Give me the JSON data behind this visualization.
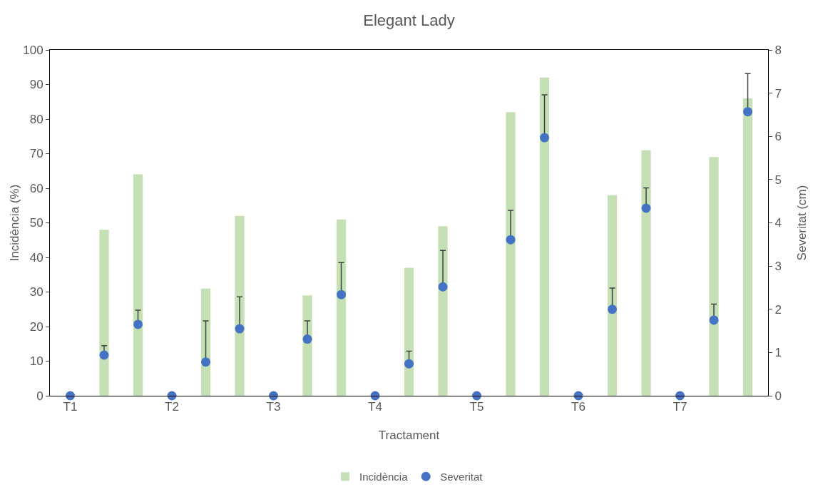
{
  "chart_data": {
    "type": "bar",
    "title": "Elegant Lady",
    "xlabel": "Tractament",
    "ylabel": "Incidència (%)",
    "y2label": "Severitat (cm)",
    "categories": [
      "T1",
      null,
      null,
      "T2",
      null,
      null,
      "T3",
      null,
      null,
      "T4",
      null,
      null,
      "T5",
      null,
      null,
      "T6",
      null,
      null,
      "T7",
      null,
      null
    ],
    "series": [
      {
        "name": "Incidència",
        "color": "#c5e0b4",
        "values": [
          0,
          48,
          64,
          0,
          31,
          52,
          0,
          29,
          51,
          0,
          37,
          49,
          0,
          82,
          92,
          0,
          58,
          71,
          0,
          69,
          86
        ]
      },
      {
        "name": "Severitat",
        "type": "scatter",
        "axis": "y2",
        "color": "#4472c4",
        "marker": "circle",
        "values": [
          0,
          0.94,
          1.65,
          0,
          0.78,
          1.55,
          0,
          1.31,
          2.34,
          0,
          0.74,
          2.52,
          0,
          3.61,
          5.97,
          0,
          2.0,
          4.34,
          0,
          1.75,
          6.57
        ],
        "errors": [
          null,
          [
            0.94,
            1.16
          ],
          [
            1.65,
            1.98
          ],
          null,
          [
            0.78,
            1.73
          ],
          [
            1.55,
            2.29
          ],
          null,
          [
            1.31,
            1.73
          ],
          [
            2.34,
            3.08
          ],
          null,
          [
            0.74,
            1.03
          ],
          [
            2.52,
            3.36
          ],
          null,
          [
            3.61,
            4.29
          ],
          [
            5.97,
            6.96
          ],
          null,
          [
            2.0,
            2.49
          ],
          [
            4.34,
            4.81
          ],
          null,
          [
            1.75,
            2.12
          ],
          [
            6.57,
            7.45
          ]
        ]
      }
    ],
    "ylim": [
      0,
      100
    ],
    "yticks": [
      0,
      10,
      20,
      30,
      40,
      50,
      60,
      70,
      80,
      90,
      100
    ],
    "y2lim": [
      0,
      8
    ],
    "y2ticks": [
      0,
      1,
      2,
      3,
      4,
      5,
      6,
      7,
      8
    ],
    "grid": false,
    "legend": "bottom"
  }
}
